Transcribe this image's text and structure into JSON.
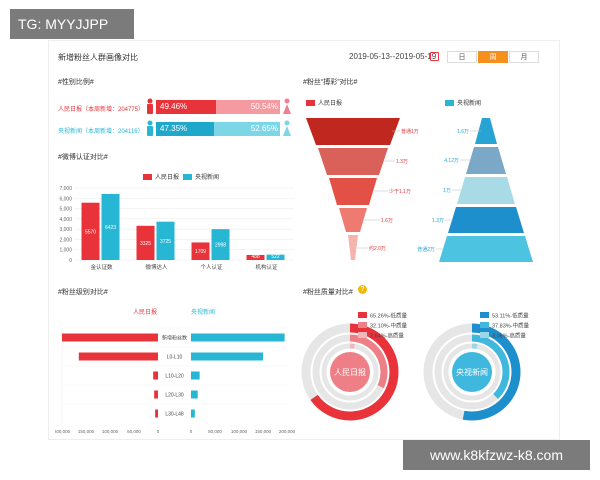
{
  "watermark_top": "TG: MYYJJPP",
  "watermark_bottom": "www.k8kfzwz-k8.com",
  "header": {
    "title": "新增粉丝人群画像对比",
    "date_range": "2019-05-13--2019-05-19",
    "periods": [
      "日",
      "周",
      "月"
    ],
    "active_period": "周"
  },
  "colors": {
    "red": "#e8333a",
    "blue": "#27b7d4",
    "orange": "#f5901e"
  },
  "gender": {
    "title": "#性别比例#",
    "rows": [
      {
        "label": "人民日报（本周新增：204775）",
        "male": "49.46%",
        "female": "50.54%"
      },
      {
        "label": "央视新闻（本周新增：204116）",
        "male": "47.35%",
        "female": "52.65%"
      }
    ]
  },
  "verify": {
    "title": "#微博认证对比#",
    "legend": [
      "人民日报",
      "央视新闻"
    ],
    "chart_data": {
      "type": "bar",
      "categories": [
        "金认证数",
        "微博达人",
        "个人认证",
        "机构认证"
      ],
      "series": [
        {
          "name": "人民日报",
          "values": [
            5570,
            3325,
            1709,
            488
          ]
        },
        {
          "name": "央视新闻",
          "values": [
            6423,
            3725,
            2998,
            522
          ]
        }
      ],
      "ylim": [
        0,
        7000
      ],
      "yticks": [
        "7,000",
        "6,000",
        "5,000",
        "4,000",
        "3,000",
        "2,000",
        "1,000",
        "0"
      ]
    }
  },
  "relation": {
    "title": "#粉丝“搏彩”对比#",
    "legend": [
      "人民日报",
      "央视新闻"
    ],
    "left_labels": [
      "普通1万",
      "1.3万",
      "少于1.1万",
      "1.6万",
      "约2.0万"
    ],
    "right_labels": [
      "1.6万",
      "4.12万",
      "1万",
      "1.3万",
      "普通2万"
    ]
  },
  "level": {
    "title": "#粉丝级别对比#",
    "left_name": "人民日报",
    "right_name": "央视新闻",
    "chart_data": {
      "type": "bar",
      "categories": [
        "新增粉丝数",
        "L0-L10",
        "L10-L20",
        "L20-L30",
        "L30-L48"
      ],
      "series": [
        {
          "name": "人民日报",
          "values": [
            200000,
            165000,
            10000,
            8000,
            6000
          ]
        },
        {
          "name": "央视新闻",
          "values": [
            195000,
            150000,
            18000,
            14000,
            8000
          ]
        }
      ],
      "left_ticks": [
        "200,000",
        "150,000",
        "100,000",
        "50,000",
        "0"
      ],
      "right_ticks": [
        "0",
        "50,000",
        "100,000",
        "150,000",
        "200,000"
      ]
    }
  },
  "quality": {
    "title": "#粉丝质量对比#",
    "help": "?",
    "charts": [
      {
        "name": "人民日报",
        "items": [
          "65.26%-低质量",
          "32.10%-中质量",
          "2.64%-高质量"
        ]
      },
      {
        "name": "央视新闻",
        "items": [
          "53.11%-低质量",
          "37.83%-中质量",
          "3.06%-高质量"
        ]
      }
    ],
    "chart_data": [
      {
        "type": "pie",
        "title": "人民日报",
        "values": [
          65.26,
          32.1,
          2.64
        ],
        "labels": [
          "低质量",
          "中质量",
          "高质量"
        ]
      },
      {
        "type": "pie",
        "title": "央视新闻",
        "values": [
          53.11,
          37.83,
          3.06
        ],
        "labels": [
          "低质量",
          "中质量",
          "高质量"
        ]
      }
    ]
  }
}
